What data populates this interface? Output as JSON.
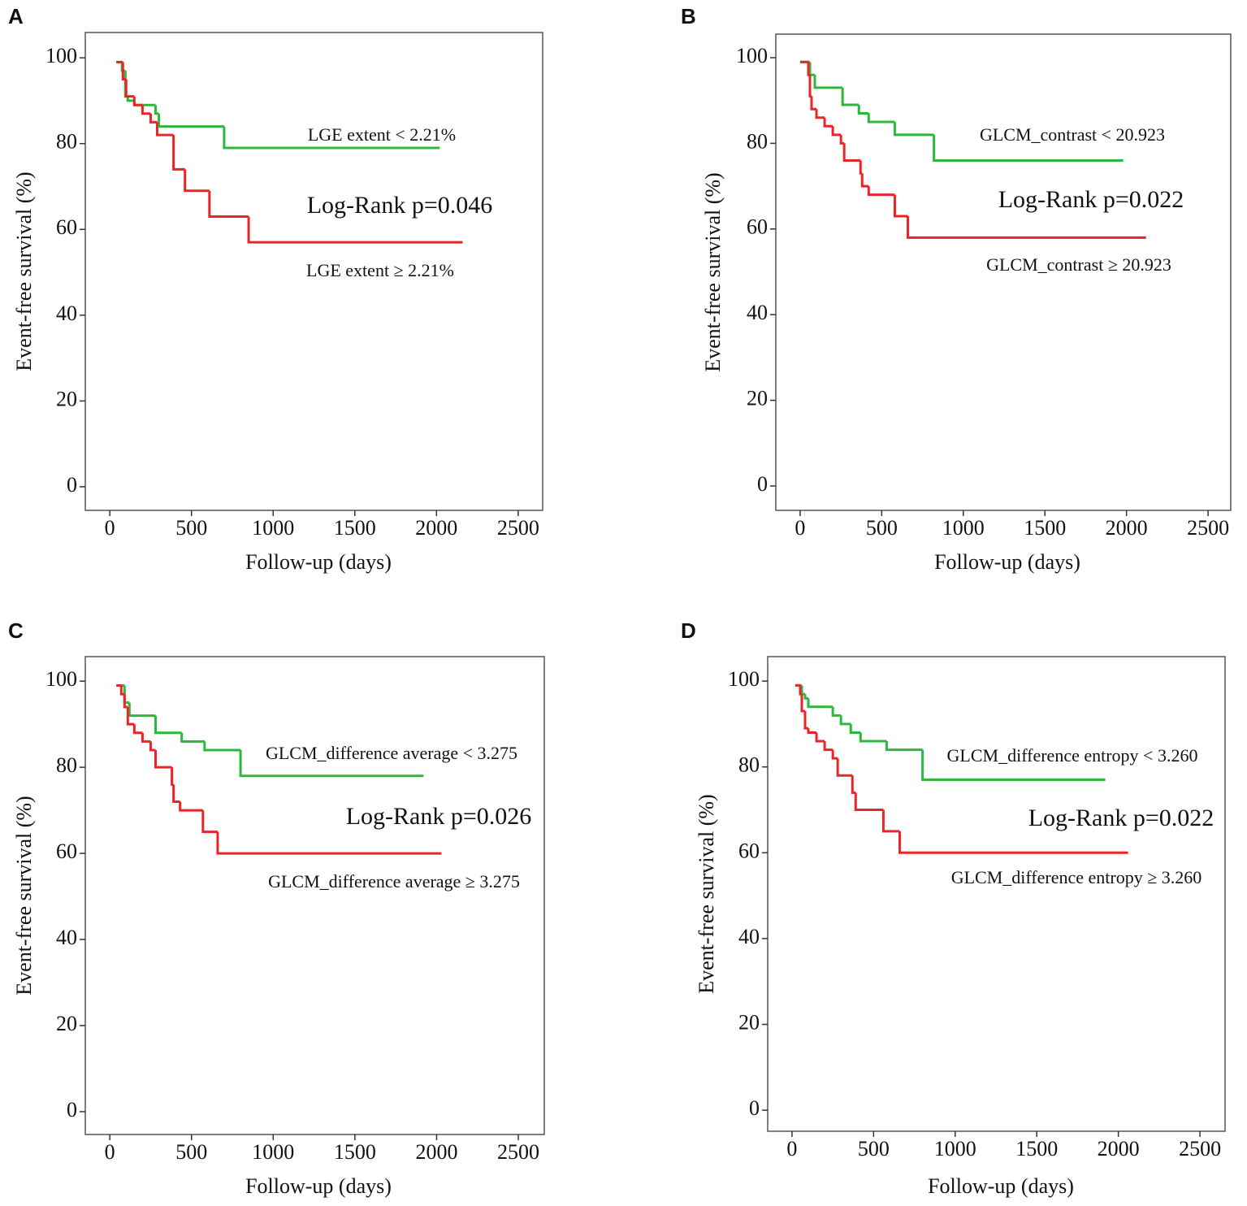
{
  "chart_data": [
    {
      "type": "line",
      "step": true,
      "panel": "A",
      "annotation": "Log-Rank p=0.046",
      "x_label": "Follow-up (days)",
      "y_label": "Event-free survival (%)",
      "xlim": [
        -150,
        2650
      ],
      "ylim": [
        -5.5,
        105.9
      ],
      "xticks": [
        0,
        500,
        1000,
        1500,
        2000,
        2500
      ],
      "yticks": [
        0,
        20,
        40,
        60,
        80,
        100
      ],
      "series": [
        {
          "name": "LGE extent < 2.21%",
          "color": "#2db83d",
          "x": [
            40,
            75,
            95,
            110,
            150,
            280,
            300,
            700,
            2020
          ],
          "values": [
            99,
            97,
            91,
            90,
            89,
            87,
            84,
            79,
            79
          ]
        },
        {
          "name": "LGE extent ≥ 2.21%",
          "color": "#e8262a",
          "x": [
            40,
            80,
            100,
            150,
            200,
            250,
            290,
            390,
            460,
            610,
            850,
            2160
          ],
          "values": [
            99,
            95,
            91,
            89,
            87,
            85,
            82,
            74,
            69,
            63,
            57,
            57
          ]
        }
      ]
    },
    {
      "type": "line",
      "step": true,
      "panel": "B",
      "annotation": "Log-Rank p=0.022",
      "x_label": "Follow-up (days)",
      "y_label": "Event-free survival (%)",
      "xlim": [
        -149,
        2639
      ],
      "ylim": [
        -5.7,
        105.5
      ],
      "xticks": [
        0,
        500,
        1000,
        1500,
        2000,
        2500
      ],
      "yticks": [
        0,
        20,
        40,
        60,
        80,
        100
      ],
      "series": [
        {
          "name": "GLCM_contrast < 20.923",
          "color": "#2db83d",
          "x": [
            0,
            60,
            90,
            260,
            360,
            420,
            580,
            820,
            1980
          ],
          "values": [
            99,
            96,
            93,
            89,
            87,
            85,
            82,
            76,
            76
          ]
        },
        {
          "name": "GLCM_contrast ≥ 20.923",
          "color": "#e8262a",
          "x": [
            0,
            50,
            60,
            70,
            100,
            150,
            200,
            250,
            270,
            370,
            380,
            420,
            580,
            660,
            2120
          ],
          "values": [
            99,
            96,
            91,
            88,
            86,
            84,
            82,
            80,
            76,
            73,
            70,
            68,
            63,
            58,
            58
          ]
        }
      ]
    },
    {
      "type": "line",
      "step": true,
      "panel": "C",
      "annotation": "Log-Rank p=0.026",
      "x_label": "Follow-up (days)",
      "y_label": "Event-free survival (%)",
      "xlim": [
        -150,
        2659
      ],
      "ylim": [
        -5.3,
        105.7
      ],
      "xticks": [
        0,
        500,
        1000,
        1500,
        2000,
        2500
      ],
      "yticks": [
        0,
        20,
        40,
        60,
        80,
        100
      ],
      "series": [
        {
          "name": "GLCM_difference average < 3.275",
          "color": "#2db83d",
          "x": [
            40,
            90,
            120,
            280,
            440,
            580,
            800,
            1920
          ],
          "values": [
            99,
            95,
            92,
            88,
            86,
            84,
            78,
            78
          ]
        },
        {
          "name": "GLCM_difference average ≥ 3.275",
          "color": "#e8262a",
          "x": [
            40,
            70,
            90,
            110,
            150,
            200,
            250,
            280,
            380,
            390,
            430,
            570,
            660,
            2030
          ],
          "values": [
            99,
            97,
            94,
            90,
            88,
            86,
            84,
            80,
            76,
            72,
            70,
            65,
            60,
            60
          ]
        }
      ]
    },
    {
      "type": "line",
      "step": true,
      "panel": "D",
      "annotation": "Log-Rank p=0.022",
      "x_label": "Follow-up (days)",
      "y_label": "Event-free survival (%)",
      "xlim": [
        -149,
        2654
      ],
      "ylim": [
        -4.9,
        105.7
      ],
      "xticks": [
        0,
        500,
        1000,
        1500,
        2000,
        2500
      ],
      "yticks": [
        0,
        20,
        40,
        60,
        80,
        100
      ],
      "series": [
        {
          "name": "GLCM_difference entropy < 3.260",
          "color": "#2db83d",
          "x": [
            20,
            60,
            80,
            100,
            250,
            300,
            360,
            420,
            580,
            800,
            1920
          ],
          "values": [
            99,
            97,
            96,
            94,
            92,
            90,
            88,
            86,
            84,
            77,
            77
          ]
        },
        {
          "name": "GLCM_difference entropy ≥ 3.260",
          "color": "#e8262a",
          "x": [
            20,
            50,
            60,
            80,
            100,
            150,
            200,
            250,
            280,
            370,
            390,
            560,
            660,
            2060
          ],
          "values": [
            99,
            97,
            93,
            89,
            88,
            86,
            84,
            82,
            78,
            74,
            70,
            65,
            60,
            60
          ]
        }
      ]
    }
  ]
}
